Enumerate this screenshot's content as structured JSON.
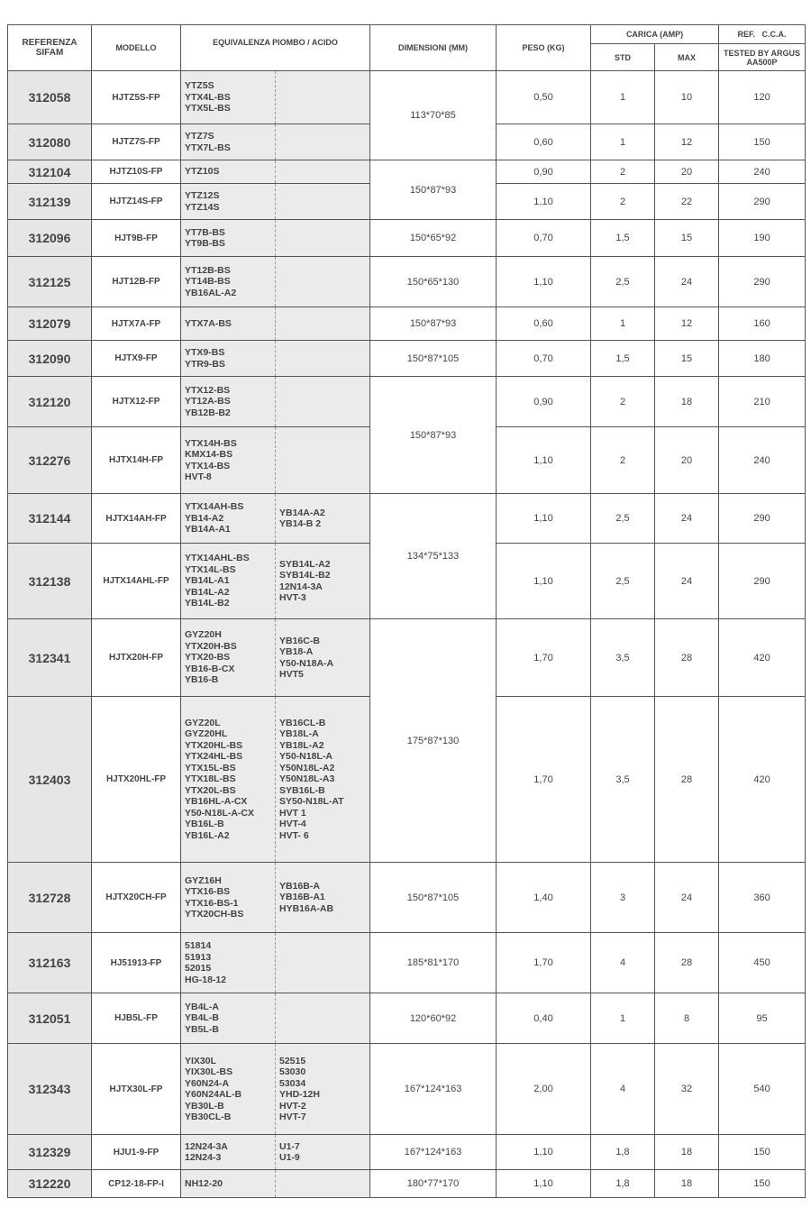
{
  "header": {
    "ref": "REFERENZA SIFAM",
    "model": "MODELLO",
    "equiv": "EQUIVALENZA PIOMBO / ACIDO",
    "dims": "DIMENSIONI (MM)",
    "peso": "PESO (KG)",
    "carica": "CARICA (AMP)",
    "std": "STD",
    "max": "MAX",
    "cca": "REF.   C.C.A.",
    "cca_sub": "TESTED BY ARGUS AA500P"
  },
  "rows": [
    {
      "ref": "312058",
      "model": "HJTZ5S-FP",
      "eq1": [
        "YTZ5S",
        "YTX4L-BS",
        "YTX5L-BS"
      ],
      "eq2": [],
      "peso": "0,50",
      "std": "1",
      "max": "10",
      "cca": "120"
    },
    {
      "ref": "312080",
      "model": "HJTZ7S-FP",
      "eq1": [
        "YTZ7S",
        "YTX7L-BS"
      ],
      "eq2": [],
      "peso": "0,60",
      "std": "1",
      "max": "12",
      "cca": "150"
    },
    {
      "ref": "312104",
      "model": "HJTZ10S-FP",
      "eq1": [
        "YTZ10S"
      ],
      "eq2": [],
      "peso": "0,90",
      "std": "2",
      "max": "20",
      "cca": "240"
    },
    {
      "ref": "312139",
      "model": "HJTZ14S-FP",
      "eq1": [
        "YTZ12S",
        "YTZ14S"
      ],
      "eq2": [],
      "peso": "1,10",
      "std": "2",
      "max": "22",
      "cca": "290"
    },
    {
      "ref": "312096",
      "model": "HJT9B-FP",
      "eq1": [
        "YT7B-BS",
        "YT9B-BS"
      ],
      "eq2": [],
      "peso": "0,70",
      "std": "1,5",
      "max": "15",
      "cca": "190"
    },
    {
      "ref": "312125",
      "model": "HJT12B-FP",
      "eq1": [
        "YT12B-BS",
        "YT14B-BS",
        "YB16AL-A2"
      ],
      "eq2": [],
      "peso": "1,10",
      "std": "2,5",
      "max": "24",
      "cca": "290"
    },
    {
      "ref": "312079",
      "model": "HJTX7A-FP",
      "eq1": [
        "YTX7A-BS"
      ],
      "eq2": [],
      "peso": "0,60",
      "std": "1",
      "max": "12",
      "cca": "160"
    },
    {
      "ref": "312090",
      "model": "HJTX9-FP",
      "eq1": [
        "YTX9-BS",
        "YTR9-BS"
      ],
      "eq2": [],
      "peso": "0,70",
      "std": "1,5",
      "max": "15",
      "cca": "180"
    },
    {
      "ref": "312120",
      "model": "HJTX12-FP",
      "eq1": [
        "YTX12-BS",
        "YT12A-BS",
        "YB12B-B2"
      ],
      "eq2": [],
      "peso": "0,90",
      "std": "2",
      "max": "18",
      "cca": "210"
    },
    {
      "ref": "312276",
      "model": "HJTX14H-FP",
      "eq1": [
        "YTX14H-BS",
        "KMX14-BS",
        "YTX14-BS",
        "HVT-8"
      ],
      "eq2": [],
      "peso": "1,10",
      "std": "2",
      "max": "20",
      "cca": "240"
    },
    {
      "ref": "312144",
      "model": "HJTX14AH-FP",
      "eq1": [
        "YTX14AH-BS",
        "YB14-A2",
        "YB14A-A1"
      ],
      "eq2": [
        "YB14A-A2",
        "YB14-B 2"
      ],
      "peso": "1,10",
      "std": "2,5",
      "max": "24",
      "cca": "290"
    },
    {
      "ref": "312138",
      "model": "HJTX14AHL-FP",
      "eq1": [
        "YTX14AHL-BS",
        "YTX14L-BS",
        "YB14L-A1",
        "YB14L-A2",
        "YB14L-B2"
      ],
      "eq2": [
        "SYB14L-A2",
        "SYB14L-B2",
        "12N14-3A",
        "HVT-3"
      ],
      "peso": "1,10",
      "std": "2,5",
      "max": "24",
      "cca": "290"
    },
    {
      "ref": "312341",
      "model": "HJTX20H-FP",
      "eq1": [
        "GYZ20H",
        "YTX20H-BS",
        "YTX20-BS",
        "YB16-B-CX",
        "YB16-B"
      ],
      "eq2": [
        "YB16C-B",
        "YB18-A",
        "Y50-N18A-A",
        "HVT5"
      ],
      "peso": "1,70",
      "std": "3,5",
      "max": "28",
      "cca": "420"
    },
    {
      "ref": "312403",
      "model": "HJTX20HL-FP",
      "eq1": [
        "GYZ20L",
        "GYZ20HL",
        "YTX20HL-BS",
        "YTX24HL-BS",
        "YTX15L-BS",
        "YTX18L-BS",
        "YTX20L-BS",
        "YB16HL-A-CX",
        "Y50-N18L-A-CX",
        "YB16L-B",
        "YB16L-A2"
      ],
      "eq2": [
        "YB16CL-B",
        "YB18L-A",
        "YB18L-A2",
        "Y50-N18L-A",
        "Y50N18L-A2",
        "Y50N18L-A3",
        "SYB16L-B",
        "SY50-N18L-AT",
        "HVT 1",
        "HVT-4",
        "HVT- 6"
      ],
      "peso": "1,70",
      "std": "3,5",
      "max": "28",
      "cca": "420"
    },
    {
      "ref": "312728",
      "model": "HJTX20CH-FP",
      "eq1": [
        "GYZ16H",
        "YTX16-BS",
        "YTX16-BS-1",
        "YTX20CH-BS"
      ],
      "eq2": [
        "YB16B-A",
        "YB16B-A1",
        "HYB16A-AB"
      ],
      "peso": "1,40",
      "std": "3",
      "max": "24",
      "cca": "360"
    },
    {
      "ref": "312163",
      "model": "HJ51913-FP",
      "eq1": [
        "51814",
        "51913",
        "52015",
        "HG-18-12"
      ],
      "eq2": [],
      "peso": "1,70",
      "std": "4",
      "max": "28",
      "cca": "450"
    },
    {
      "ref": "312051",
      "model": "HJB5L-FP",
      "eq1": [
        "YB4L-A",
        "YB4L-B",
        "YB5L-B"
      ],
      "eq2": [],
      "peso": "0,40",
      "std": "1",
      "max": "8",
      "cca": "95"
    },
    {
      "ref": "312343",
      "model": "HJTX30L-FP",
      "eq1": [
        "YIX30L",
        "YIX30L-BS",
        "Y60N24-A",
        "Y60N24AL-B",
        "YB30L-B",
        "YB30CL-B"
      ],
      "eq2": [
        "52515",
        "53030",
        "53034",
        "YHD-12H",
        "HVT-2",
        "HVT-7"
      ],
      "peso": "2,00",
      "std": "4",
      "max": "32",
      "cca": "540"
    },
    {
      "ref": "312329",
      "model": "HJU1-9-FP",
      "eq1": [
        "12N24-3A",
        "12N24-3"
      ],
      "eq2": [
        "U1-7",
        "U1-9"
      ],
      "peso": "1,10",
      "std": "1,8",
      "max": "18",
      "cca": "150"
    },
    {
      "ref": "312220",
      "model": "CP12-18-FP-I",
      "eq1": [
        "NH12-20"
      ],
      "eq2": [],
      "peso": "1,10",
      "std": "1,8",
      "max": "18",
      "cca": "150"
    }
  ],
  "dimension_groups": [
    {
      "value": "113*70*85",
      "rows": 2
    },
    {
      "value": "150*87*93",
      "rows": 2
    },
    {
      "value": "150*65*92",
      "rows": 1
    },
    {
      "value": "150*65*130",
      "rows": 1
    },
    {
      "value": "150*87*93",
      "rows": 1
    },
    {
      "value": "150*87*105",
      "rows": 1
    },
    {
      "value": "150*87*93",
      "rows": 2
    },
    {
      "value": "134*75*133",
      "rows": 2
    },
    {
      "value": "175*87*130",
      "rows": 2
    },
    {
      "value": "150*87*105",
      "rows": 1
    },
    {
      "value": "185*81*170",
      "rows": 1
    },
    {
      "value": "120*60*92",
      "rows": 1
    },
    {
      "value": "167*124*163",
      "rows": 1
    },
    {
      "value": "167*124*163",
      "rows": 1
    },
    {
      "value": "180*77*170",
      "rows": 1
    }
  ]
}
